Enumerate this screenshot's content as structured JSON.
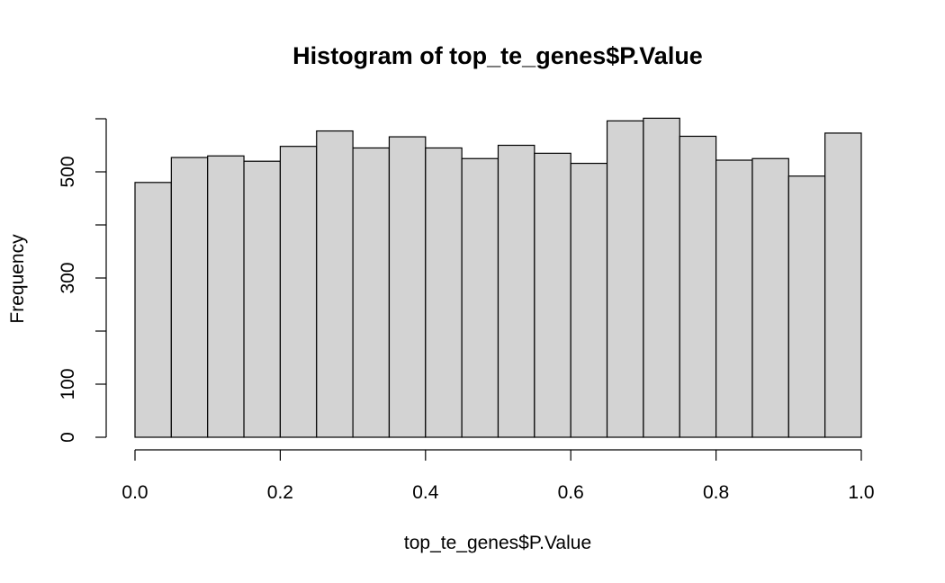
{
  "chart_data": {
    "type": "bar",
    "title": "Histogram of top_te_genes$P.Value",
    "xlabel": "top_te_genes$P.Value",
    "ylabel": "Frequency",
    "bin_edges": [
      0.0,
      0.05,
      0.1,
      0.15,
      0.2,
      0.25,
      0.3,
      0.35,
      0.4,
      0.45,
      0.5,
      0.55,
      0.6,
      0.65,
      0.7,
      0.75,
      0.8,
      0.85,
      0.9,
      0.95,
      1.0
    ],
    "values": [
      480,
      527,
      530,
      520,
      548,
      577,
      545,
      566,
      545,
      525,
      550,
      535,
      516,
      596,
      601,
      567,
      522,
      525,
      492,
      573
    ],
    "xlim": [
      0.0,
      1.0
    ],
    "ylim": [
      0,
      600
    ],
    "x_ticks": [
      "0.0",
      "0.2",
      "0.4",
      "0.6",
      "0.8",
      "1.0"
    ],
    "y_ticks": [
      0,
      100,
      200,
      300,
      400,
      500,
      600
    ],
    "y_tick_labels": [
      "0",
      "100",
      "",
      "300",
      "",
      "500",
      ""
    ],
    "grid": false,
    "bar_color": "#d3d3d3",
    "edge_color": "#000000"
  }
}
